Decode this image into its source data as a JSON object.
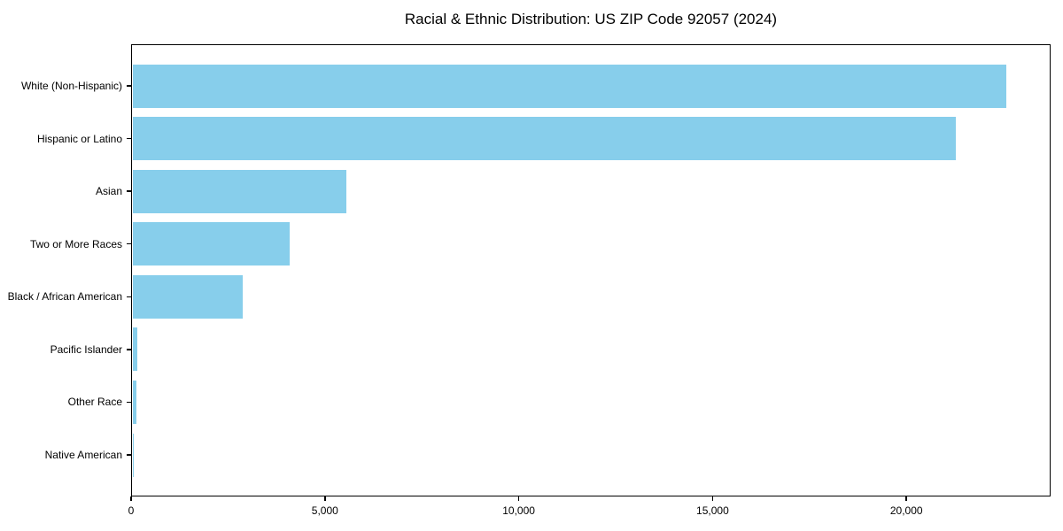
{
  "chart_data": {
    "type": "bar",
    "orientation": "horizontal",
    "title": "Racial & Ethnic Distribution: US ZIP Code 92057 (2024)",
    "categories": [
      "White (Non-Hispanic)",
      "Hispanic or Latino",
      "Asian",
      "Two or More Races",
      "Black / African American",
      "Pacific Islander",
      "Other Race",
      "Native American"
    ],
    "values": [
      22580,
      21280,
      5550,
      4100,
      2880,
      150,
      140,
      60
    ],
    "xlabel": "",
    "ylabel": "",
    "xlim": [
      0,
      23720
    ],
    "xticks": [
      0,
      5000,
      10000,
      15000,
      20000
    ],
    "xtick_labels": [
      "0",
      "5,000",
      "10,000",
      "15,000",
      "20,000"
    ],
    "bar_color": "#87CEEB",
    "text_color": "#000000",
    "grid": false,
    "legend": null
  }
}
